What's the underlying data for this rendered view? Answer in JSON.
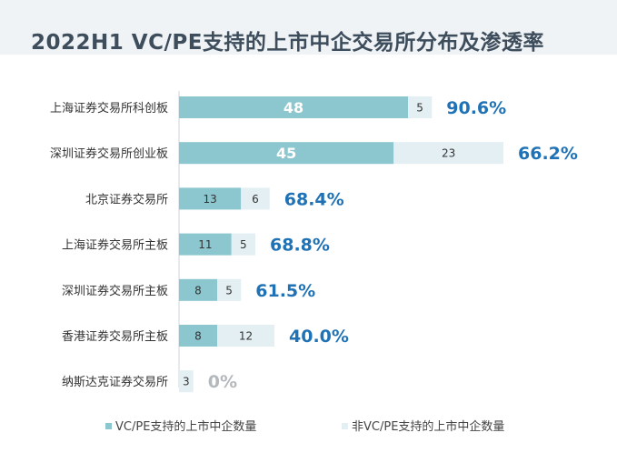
{
  "title": "2022H1 VC/PE支持的上市中企交易所分布及渗透率",
  "colors": {
    "vc_bar": "#8cc6cf",
    "non_vc_bar": "#e3eff3",
    "pct_blue": "#1f72b5",
    "pct_gray": "#b3b8bd",
    "title_band": "#f0f3f5"
  },
  "chart_data": {
    "type": "bar",
    "orientation": "horizontal",
    "stacked": true,
    "categories": [
      "上海证券交易所科创板",
      "深圳证券交易所创业板",
      "北京证券交易所",
      "上海证券交易所主板",
      "深圳证券交易所主板",
      "香港证券交易所主板",
      "纳斯达克证券交易所"
    ],
    "series": [
      {
        "name": "VC/PE支持的上市中企数量",
        "values": [
          48,
          45,
          13,
          11,
          8,
          8,
          0
        ]
      },
      {
        "name": "非VC/PE支持的上市中企数量",
        "values": [
          5,
          23,
          6,
          5,
          5,
          12,
          3
        ]
      }
    ],
    "penetration_labels": [
      "90.6%",
      "66.2%",
      "68.4%",
      "68.8%",
      "61.5%",
      "40.0%",
      "0%"
    ],
    "legend_position": "bottom",
    "grid": false
  }
}
